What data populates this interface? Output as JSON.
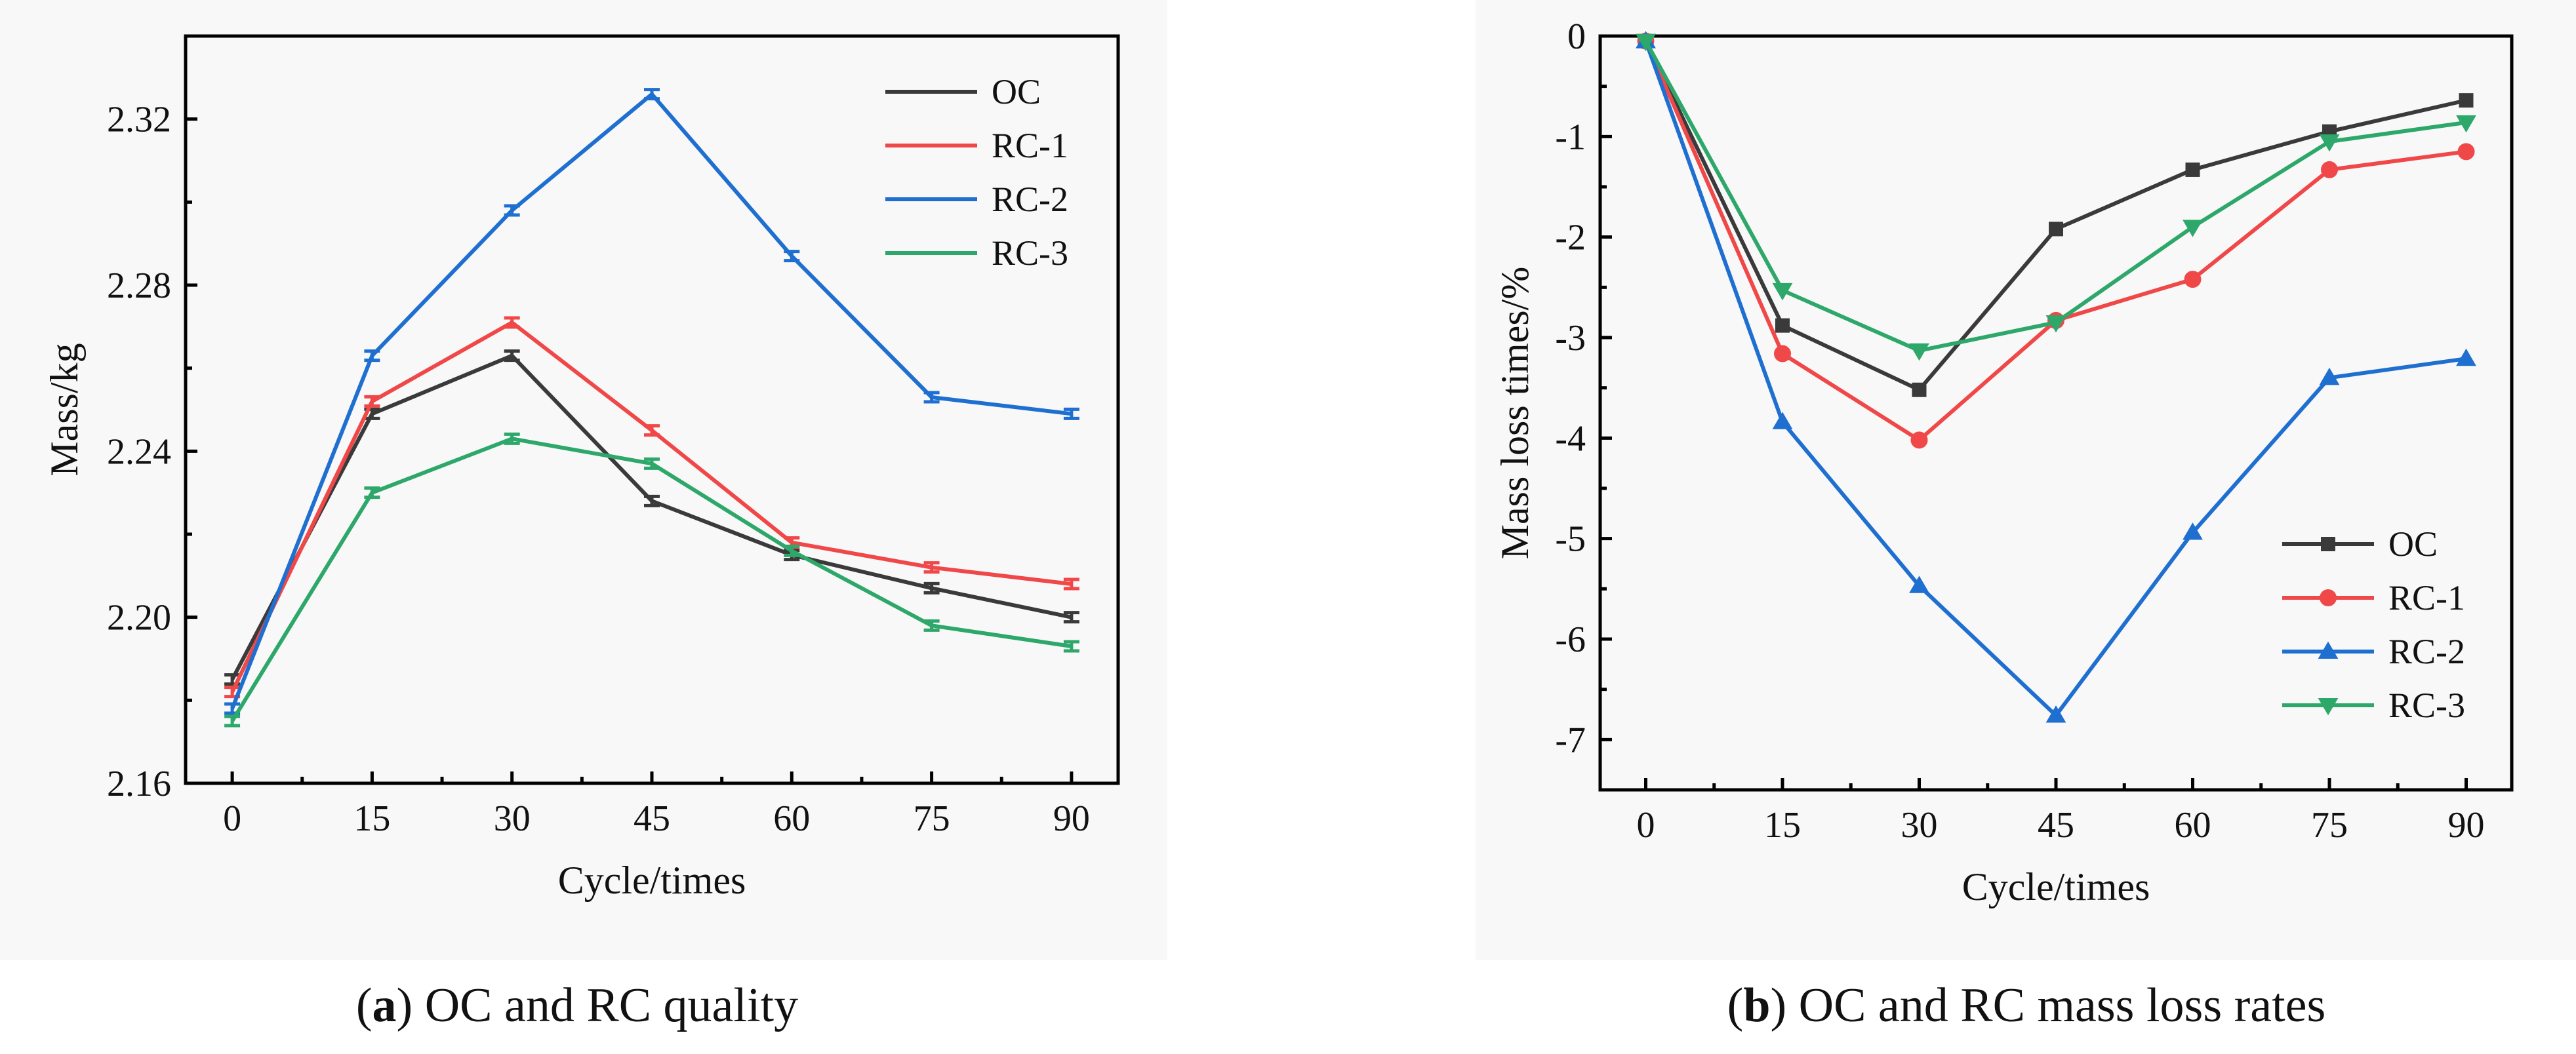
{
  "captions": [
    {
      "letter": "a",
      "text": " OC and RC quality"
    },
    {
      "letter": "b",
      "text": " OC and RC mass loss rates"
    }
  ],
  "chart_data": [
    {
      "type": "line",
      "title": "",
      "xlabel": "Cycle/times",
      "ylabel": "Mass/kg",
      "x": [
        0,
        15,
        30,
        45,
        60,
        75,
        90
      ],
      "xticks": [
        "0",
        "15",
        "30",
        "45",
        "60",
        "75",
        "90"
      ],
      "xlim": [
        -5,
        95
      ],
      "yticks": [
        "2.16",
        "2.20",
        "2.24",
        "2.28",
        "2.32"
      ],
      "ylim": [
        2.16,
        2.34
      ],
      "grid": false,
      "legend_position": "top-right",
      "markers": "none",
      "error_bars": true,
      "series": [
        {
          "name": "OC",
          "color": "#3a3a3a",
          "values": [
            2.185,
            2.249,
            2.263,
            2.228,
            2.215,
            2.207,
            2.2
          ]
        },
        {
          "name": "RC-1",
          "color": "#f04848",
          "values": [
            2.182,
            2.252,
            2.271,
            2.245,
            2.218,
            2.212,
            2.208
          ]
        },
        {
          "name": "RC-2",
          "color": "#1f6fd1",
          "values": [
            2.178,
            2.263,
            2.298,
            2.326,
            2.287,
            2.253,
            2.249
          ]
        },
        {
          "name": "RC-3",
          "color": "#2ea86a",
          "values": [
            2.175,
            2.23,
            2.243,
            2.237,
            2.216,
            2.198,
            2.193
          ]
        }
      ]
    },
    {
      "type": "line",
      "title": "",
      "xlabel": "Cycle/times",
      "ylabel": "Mass loss times/%",
      "x": [
        0,
        15,
        30,
        45,
        60,
        75,
        90
      ],
      "xticks": [
        "0",
        "15",
        "30",
        "45",
        "60",
        "75",
        "90"
      ],
      "xlim": [
        -5,
        95
      ],
      "yticks": [
        "0",
        "-1",
        "-2",
        "-3",
        "-4",
        "-5",
        "-6",
        "-7"
      ],
      "ylim": [
        -7.5,
        0
      ],
      "grid": false,
      "legend_position": "bottom-right",
      "series": [
        {
          "name": "OC",
          "color": "#3a3a3a",
          "marker": "square",
          "values": [
            -0.05,
            -2.88,
            -3.52,
            -1.92,
            -1.33,
            -0.95,
            -0.64
          ]
        },
        {
          "name": "RC-1",
          "color": "#f04848",
          "marker": "circle",
          "values": [
            -0.05,
            -3.16,
            -4.02,
            -2.83,
            -2.42,
            -1.33,
            -1.15
          ]
        },
        {
          "name": "RC-2",
          "color": "#1f6fd1",
          "marker": "triangle-up",
          "values": [
            -0.05,
            -3.84,
            -5.47,
            -6.76,
            -4.94,
            -3.4,
            -3.21
          ]
        },
        {
          "name": "RC-3",
          "color": "#2ea86a",
          "marker": "triangle-down",
          "values": [
            -0.05,
            -2.53,
            -3.13,
            -2.85,
            -1.9,
            -1.05,
            -0.86
          ]
        }
      ]
    }
  ]
}
